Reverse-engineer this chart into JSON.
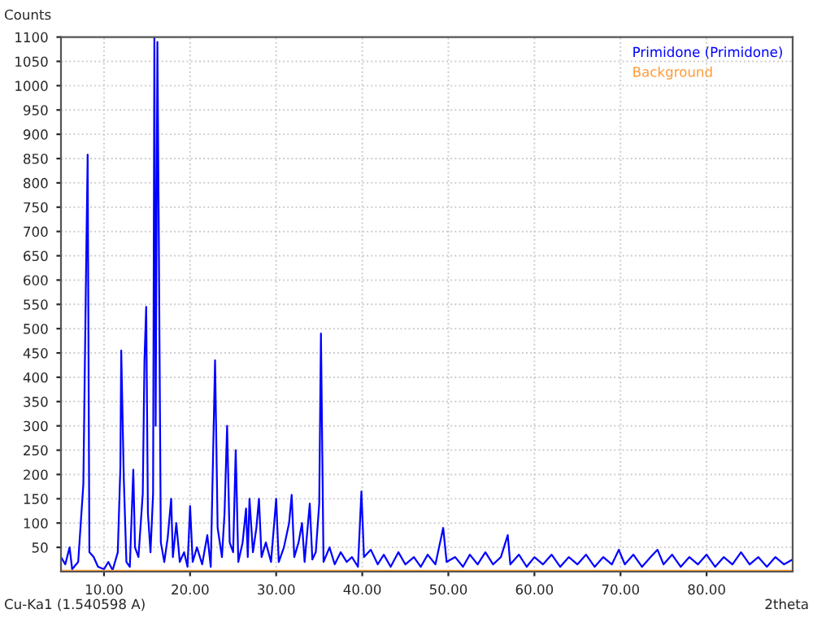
{
  "chart_data": {
    "type": "line",
    "ylabel": "Counts",
    "xlabel": "2theta",
    "annotations": [
      "Cu-Ka1 (1.540598 A)"
    ],
    "xlim": [
      5,
      90
    ],
    "xticks": [
      {
        "value": 10,
        "label": "10.00"
      },
      {
        "value": 20,
        "label": "20.00"
      },
      {
        "value": 30,
        "label": "30.00"
      },
      {
        "value": 40,
        "label": "40.00"
      },
      {
        "value": 50,
        "label": "50.00"
      },
      {
        "value": 60,
        "label": "60.00"
      },
      {
        "value": 70,
        "label": "70.00"
      },
      {
        "value": 80,
        "label": "80.00"
      }
    ],
    "ylim": [
      0,
      1100
    ],
    "yticks": [
      50,
      100,
      150,
      200,
      250,
      300,
      350,
      400,
      450,
      500,
      550,
      600,
      650,
      700,
      750,
      800,
      850,
      900,
      950,
      1000,
      1050,
      1100
    ],
    "grid": true,
    "legend": "top right",
    "marker": "none",
    "line_style": "solid",
    "series": [
      {
        "name": "Primidone (Primidone)",
        "color": "#0000ff",
        "x": [
          5.0,
          5.5,
          6.0,
          6.3,
          7.0,
          7.6,
          7.9,
          8.1,
          8.3,
          8.8,
          9.3,
          10.0,
          10.5,
          11.0,
          11.6,
          11.9,
          12.0,
          12.3,
          12.6,
          13.0,
          13.4,
          13.6,
          14.0,
          14.5,
          14.7,
          14.9,
          15.1,
          15.4,
          15.7,
          15.85,
          16.0,
          16.2,
          16.35,
          16.6,
          17.0,
          17.4,
          17.8,
          18.0,
          18.4,
          18.8,
          19.3,
          19.7,
          20.0,
          20.3,
          20.8,
          21.4,
          22.0,
          22.4,
          22.9,
          23.2,
          23.7,
          24.0,
          24.3,
          24.6,
          25.0,
          25.3,
          25.6,
          26.1,
          26.5,
          26.7,
          26.9,
          27.3,
          27.7,
          28.0,
          28.3,
          28.8,
          29.4,
          30.0,
          30.3,
          30.9,
          31.5,
          31.8,
          32.1,
          32.6,
          33.0,
          33.3,
          33.9,
          34.2,
          34.6,
          35.0,
          35.2,
          35.5,
          36.2,
          36.8,
          37.5,
          38.2,
          38.8,
          39.5,
          39.9,
          40.2,
          41.0,
          41.8,
          42.5,
          43.3,
          44.2,
          45.0,
          46.0,
          46.8,
          47.6,
          48.5,
          49.4,
          49.8,
          50.8,
          51.7,
          52.5,
          53.4,
          54.3,
          55.2,
          56.1,
          56.9,
          57.2,
          58.2,
          59.1,
          60.0,
          61.0,
          62.0,
          63.0,
          64.0,
          65.0,
          66.0,
          67.0,
          68.0,
          69.0,
          69.8,
          70.5,
          71.5,
          72.5,
          73.5,
          74.3,
          75.0,
          76.0,
          77.0,
          78.0,
          79.0,
          80.0,
          81.0,
          82.0,
          83.0,
          84.0,
          85.0,
          86.0,
          87.0,
          88.0,
          89.0,
          90.0
        ],
        "values": [
          30,
          15,
          50,
          5,
          20,
          180,
          600,
          858,
          40,
          30,
          10,
          5,
          20,
          3,
          40,
          215,
          455,
          190,
          20,
          10,
          210,
          50,
          30,
          160,
          435,
          545,
          120,
          40,
          160,
          1100,
          300,
          1090,
          725,
          60,
          20,
          70,
          150,
          30,
          100,
          20,
          40,
          10,
          135,
          20,
          50,
          15,
          75,
          10,
          435,
          90,
          30,
          120,
          300,
          60,
          40,
          250,
          20,
          60,
          130,
          30,
          150,
          40,
          90,
          150,
          30,
          60,
          20,
          150,
          20,
          50,
          100,
          158,
          30,
          60,
          100,
          20,
          140,
          25,
          40,
          140,
          490,
          20,
          50,
          15,
          40,
          20,
          30,
          10,
          165,
          30,
          45,
          15,
          35,
          10,
          40,
          15,
          30,
          10,
          35,
          15,
          90,
          20,
          30,
          10,
          35,
          15,
          40,
          15,
          30,
          75,
          15,
          35,
          10,
          30,
          15,
          35,
          10,
          30,
          15,
          35,
          10,
          30,
          15,
          45,
          15,
          35,
          10,
          30,
          45,
          15,
          35,
          10,
          30,
          15,
          35,
          10,
          30,
          15,
          40,
          15,
          30,
          10,
          30,
          15,
          25
        ]
      },
      {
        "name": "Background",
        "color": "#ff9933",
        "x": [
          5,
          90
        ],
        "values": [
          2,
          2
        ]
      }
    ]
  }
}
